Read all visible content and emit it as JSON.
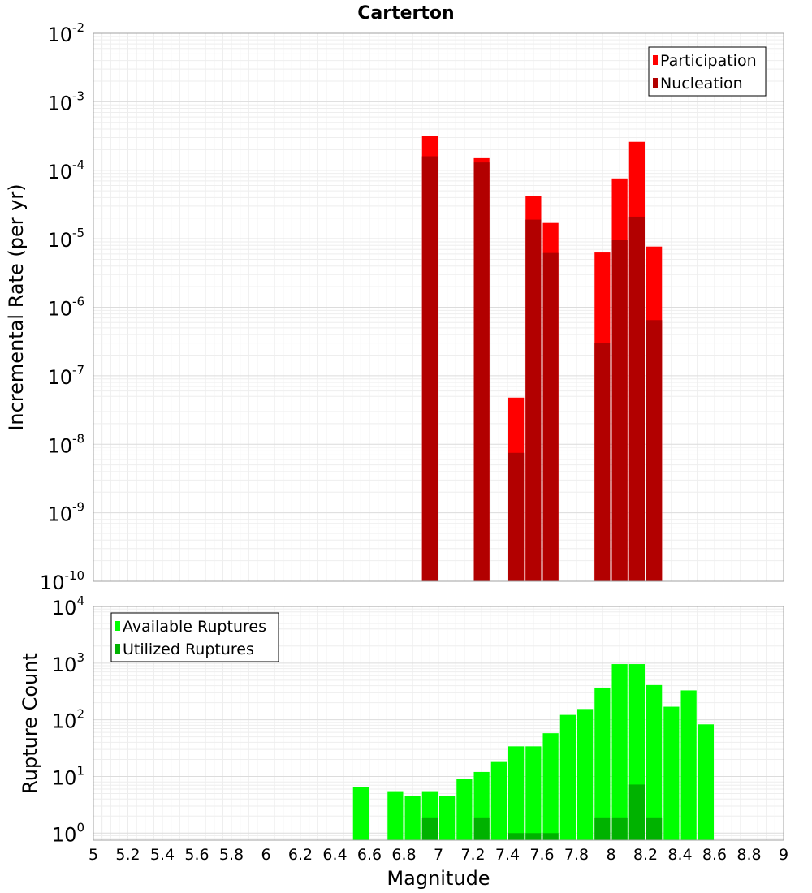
{
  "title": "Carterton",
  "chart_data": [
    {
      "type": "bar",
      "title": "Carterton",
      "xlabel": "",
      "ylabel": "Incremental Rate (per yr)",
      "yscale": "log",
      "ylim": [
        1e-10,
        0.01
      ],
      "xlim": [
        5,
        9
      ],
      "grid": true,
      "legend_position": "top-right",
      "y_tick_labels": [
        {
          "base": "10",
          "exp": "-10"
        },
        {
          "base": "10",
          "exp": "-9"
        },
        {
          "base": "10",
          "exp": "-8"
        },
        {
          "base": "10",
          "exp": "-7"
        },
        {
          "base": "10",
          "exp": "-6"
        },
        {
          "base": "10",
          "exp": "-5"
        },
        {
          "base": "10",
          "exp": "-4"
        },
        {
          "base": "10",
          "exp": "-3"
        },
        {
          "base": "10",
          "exp": "-2"
        }
      ],
      "series": [
        {
          "name": "Participation",
          "color": "#ff0000",
          "x": [
            6.95,
            7.25,
            7.45,
            7.55,
            7.65,
            7.95,
            8.05,
            8.15,
            8.25
          ],
          "values": [
            0.00032,
            0.00015,
            4.8e-08,
            4.2e-05,
            1.7e-05,
            6.3e-06,
            7.6e-05,
            0.00026,
            7.7e-06
          ]
        },
        {
          "name": "Nucleation",
          "color": "#b20000",
          "x": [
            6.95,
            7.25,
            7.45,
            7.55,
            7.65,
            7.95,
            8.05,
            8.15,
            8.25
          ],
          "values": [
            0.00016,
            0.00013,
            7.5e-09,
            1.9e-05,
            6.2e-06,
            3e-07,
            9.5e-06,
            2.1e-05,
            6.5e-07
          ]
        }
      ]
    },
    {
      "type": "bar",
      "title": "",
      "xlabel": "Magnitude",
      "ylabel": "Rupture Count",
      "yscale": "log",
      "ylim": [
        0.75,
        10000
      ],
      "xlim": [
        5,
        9
      ],
      "grid": true,
      "legend_position": "top-left",
      "x_tick_labels": [
        "5",
        "5.2",
        "5.4",
        "5.6",
        "5.8",
        "6",
        "6.2",
        "6.4",
        "6.6",
        "6.8",
        "7",
        "7.2",
        "7.4",
        "7.6",
        "7.8",
        "8",
        "8.2",
        "8.4",
        "8.6",
        "8.8",
        "9"
      ],
      "y_tick_labels": [
        {
          "base": "10",
          "exp": "0"
        },
        {
          "base": "10",
          "exp": "1"
        },
        {
          "base": "10",
          "exp": "2"
        },
        {
          "base": "10",
          "exp": "3"
        },
        {
          "base": "10",
          "exp": "4"
        }
      ],
      "series": [
        {
          "name": "Available Ruptures",
          "color": "#00ff00",
          "x": [
            6.55,
            6.75,
            6.85,
            6.95,
            7.05,
            7.15,
            7.25,
            7.35,
            7.45,
            7.55,
            7.65,
            7.75,
            7.85,
            7.95,
            8.05,
            8.15,
            8.25,
            8.35,
            8.45,
            8.55
          ],
          "values": [
            6.5,
            5.5,
            4.6,
            5.5,
            4.6,
            9,
            12,
            18,
            34,
            34,
            58,
            122,
            155,
            370,
            960,
            960,
            410,
            170,
            330,
            83
          ]
        },
        {
          "name": "Utilized Ruptures",
          "color": "#00b200",
          "x": [
            6.95,
            7.25,
            7.45,
            7.55,
            7.65,
            7.95,
            8.05,
            8.15,
            8.25
          ],
          "values": [
            1.9,
            1.9,
            1,
            1,
            1,
            1.9,
            1.9,
            7.2,
            1.9
          ]
        }
      ]
    }
  ]
}
